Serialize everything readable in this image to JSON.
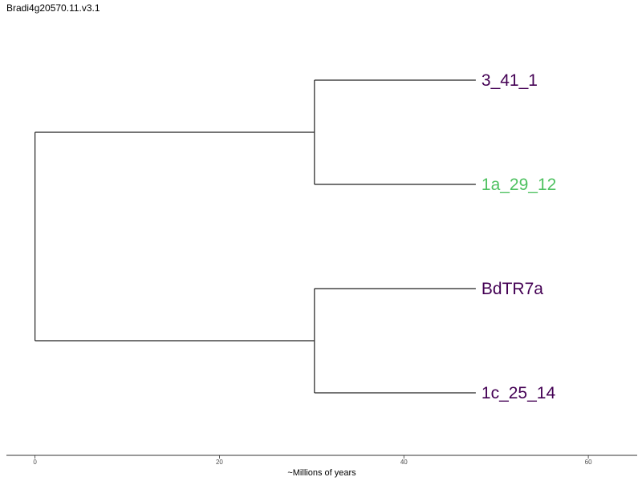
{
  "title": "Bradi4g20570.11.v3.1",
  "chart_data": {
    "type": "dendrogram",
    "xlabel": "~Millions of years",
    "xlim": [
      -3.1,
      65.3
    ],
    "xticks": [
      0,
      20,
      40,
      60
    ],
    "tick_labels": [
      "0",
      "20",
      "40",
      "60"
    ],
    "leaves": [
      {
        "name": "3_41_1",
        "height": 47.8,
        "color": "#440154"
      },
      {
        "name": "1a_29_12",
        "height": 47.8,
        "color": "#4fc161"
      },
      {
        "name": "BdTR7a",
        "height": 47.8,
        "color": "#440154"
      },
      {
        "name": "1c_25_14",
        "height": 47.8,
        "color": "#440154"
      }
    ],
    "clades": [
      {
        "leaves": [
          "3_41_1",
          "1a_29_12"
        ],
        "node_age": 30.3
      },
      {
        "leaves": [
          "BdTR7a",
          "1c_25_14"
        ],
        "node_age": 30.3
      }
    ],
    "root_age": 0
  }
}
